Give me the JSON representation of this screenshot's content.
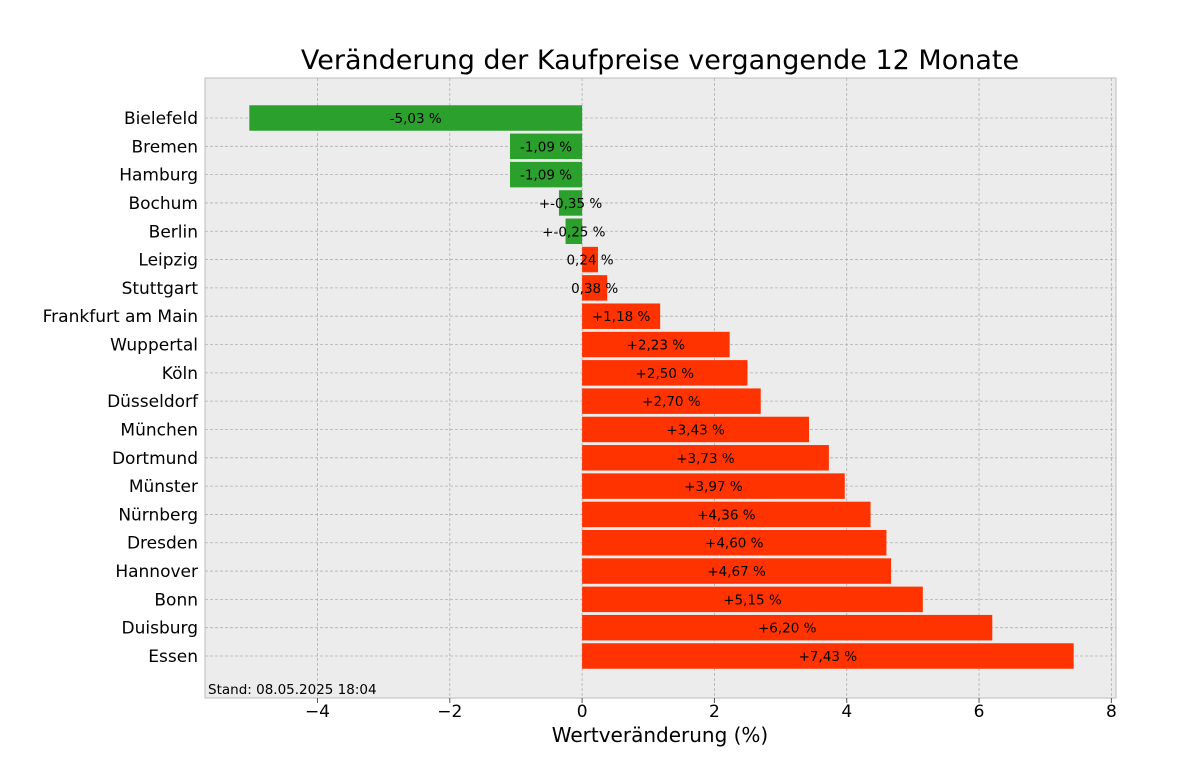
{
  "chart_data": {
    "type": "bar",
    "orientation": "horizontal",
    "title": "Veränderung der Kaufpreise vergangende 12 Monate",
    "xlabel": "Wertveränderung (%)",
    "ylabel": "",
    "xlim": [
      -5.7,
      8.07
    ],
    "xticks": [
      -4,
      -2,
      0,
      2,
      4,
      6,
      8
    ],
    "xtick_labels": [
      "−4",
      "−2",
      "0",
      "2",
      "4",
      "6",
      "8"
    ],
    "grid": true,
    "categories": [
      "Bielefeld",
      "Bremen",
      "Hamburg",
      "Bochum",
      "Berlin",
      "Leipzig",
      "Stuttgart",
      "Frankfurt am Main",
      "Wuppertal",
      "Köln",
      "Düsseldorf",
      "München",
      "Dortmund",
      "Münster",
      "Nürnberg",
      "Dresden",
      "Hannover",
      "Bonn",
      "Duisburg",
      "Essen"
    ],
    "values": [
      -5.03,
      -1.09,
      -1.09,
      -0.35,
      -0.25,
      0.24,
      0.38,
      1.18,
      2.23,
      2.5,
      2.7,
      3.43,
      3.73,
      3.97,
      4.36,
      4.6,
      4.67,
      5.15,
      6.2,
      7.43
    ],
    "data_labels": [
      "-5,03 %",
      "-1,09 %",
      "-1,09 %",
      "+-0,35 %",
      "+-0,25 %",
      "0,24 %",
      "0,38 %",
      "+1,18 %",
      "+2,23 %",
      "+2,50 %",
      "+2,70 %",
      "+3,43 %",
      "+3,73 %",
      "+3,97 %",
      "+4,36 %",
      "+4,60 %",
      "+4,67 %",
      "+5,15 %",
      "+6,20 %",
      "+7,43 %"
    ],
    "colors": {
      "negative": "#2ca02c",
      "positive": "#ff3300",
      "background": "#ececec"
    },
    "footnote": "Stand: 08.05.2025 18:04"
  }
}
